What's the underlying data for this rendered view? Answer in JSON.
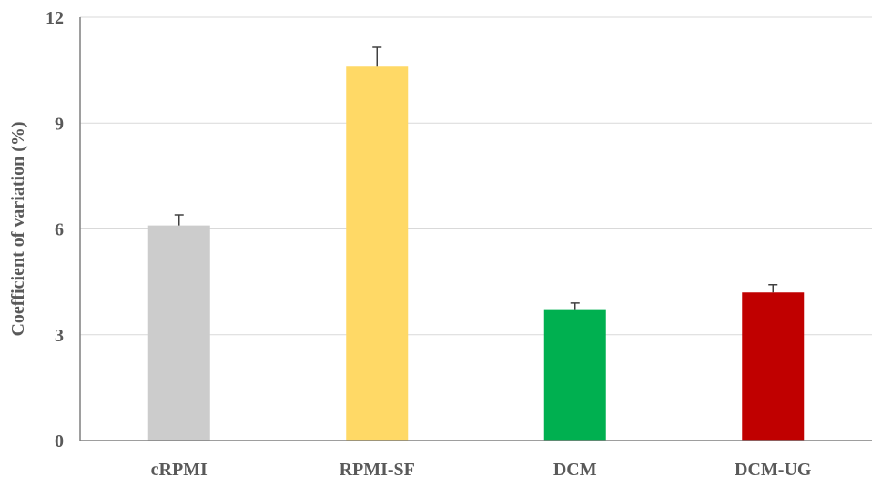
{
  "chart_data": {
    "type": "bar",
    "title": "",
    "xlabel": "",
    "ylabel": "Coefficient of variation (%)",
    "ylim": [
      0,
      12
    ],
    "yticks": [
      0,
      3,
      6,
      9,
      12
    ],
    "grid": true,
    "legend": "none",
    "categories": [
      "cRPMI",
      "RPMI-SF",
      "DCM",
      "DCM-UG"
    ],
    "values": [
      6.1,
      10.6,
      3.7,
      4.2
    ],
    "errors": [
      0.3,
      0.55,
      0.2,
      0.22
    ],
    "colors": [
      "#cccccc",
      "#ffd966",
      "#00b050",
      "#c00000"
    ]
  }
}
